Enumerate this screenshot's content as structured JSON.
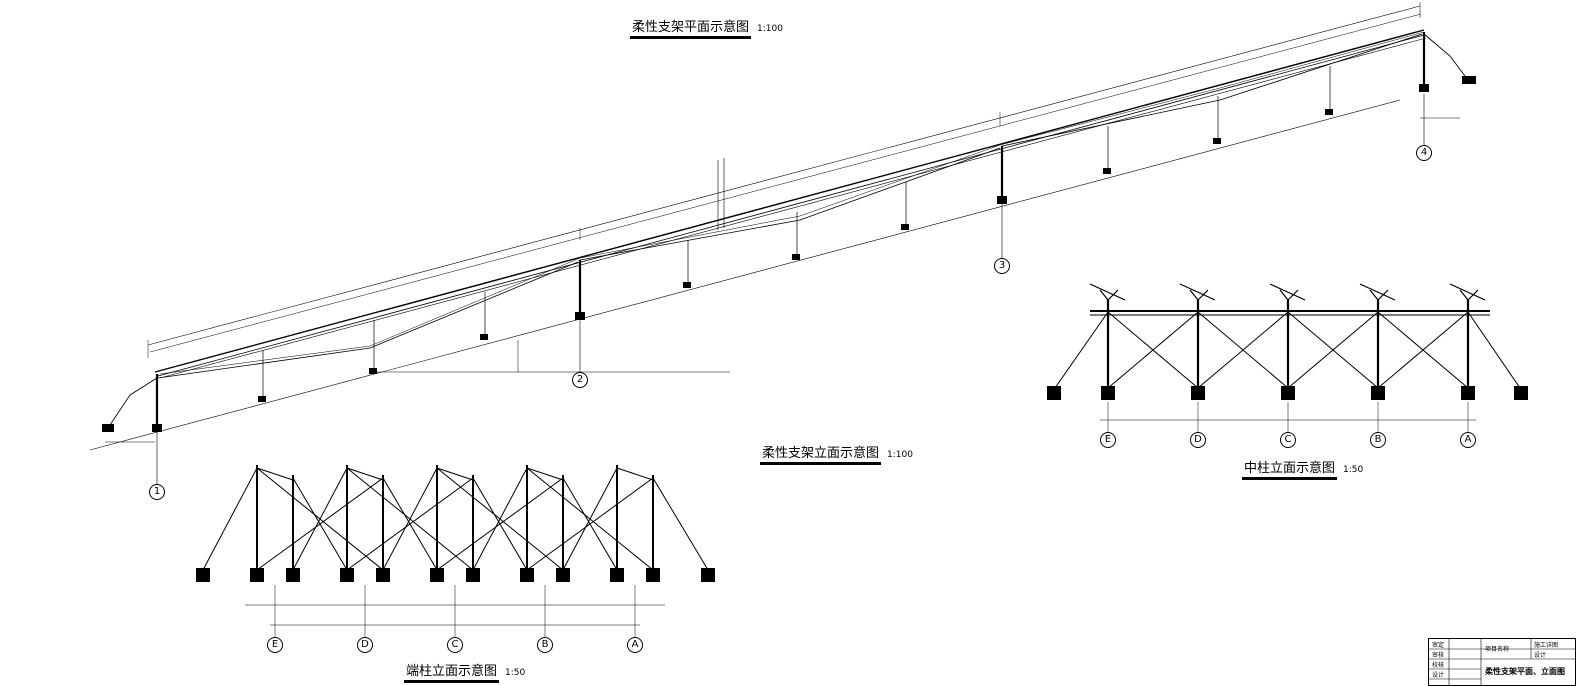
{
  "titles": {
    "plan": "柔性支架平面示意图",
    "plan_scale": "1:100",
    "elevation": "柔性支架立面示意图",
    "elevation_scale": "1:100",
    "mid_column": "中柱立面示意图",
    "mid_column_scale": "1:50",
    "end_column": "端柱立面示意图",
    "end_column_scale": "1:50"
  },
  "grid_axes_plan": [
    "1",
    "2",
    "3",
    "4"
  ],
  "grid_axes_columns": [
    "E",
    "D",
    "C",
    "B",
    "A"
  ],
  "title_block": {
    "row_labels": [
      "审定",
      "审核",
      "校核",
      "设计"
    ],
    "project_label": "项目名称",
    "stage_label": "施工详图",
    "design_label": "设计",
    "sheet_title": "柔性支架平面、立面图"
  },
  "colors": {
    "line": "#000000",
    "background": "#ffffff"
  }
}
